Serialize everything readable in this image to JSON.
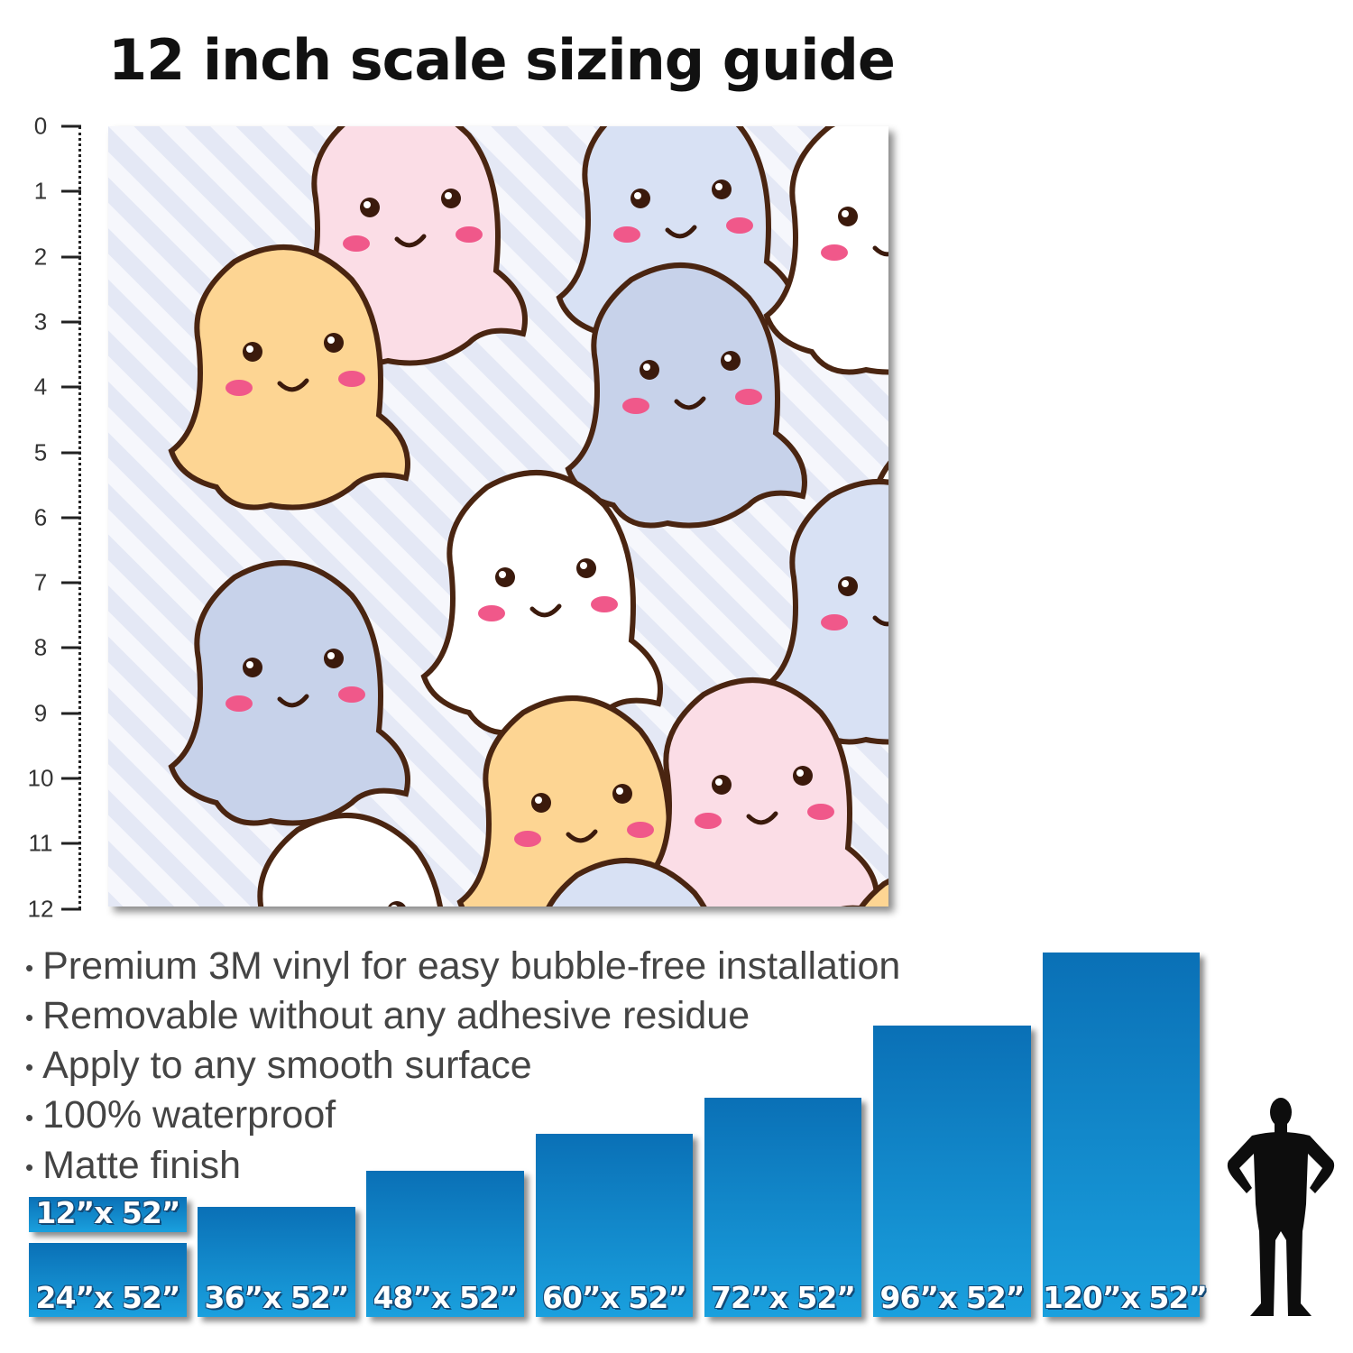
{
  "title": "12 inch scale sizing guide",
  "ruler": {
    "unit_marks": [
      "0",
      "1",
      "2",
      "3",
      "4",
      "5",
      "6",
      "7",
      "8",
      "9",
      "10",
      "11",
      "12"
    ]
  },
  "features": [
    "Premium 3M vinyl for easy bubble-free installation",
    "Removable without any adhesive residue",
    "Apply to any smooth surface",
    "100% waterproof",
    "Matte finish"
  ],
  "sizes": [
    {
      "label": "12”x 52”",
      "width_in": 12
    },
    {
      "label": "24”x 52”",
      "width_in": 24
    },
    {
      "label": "36”x 52”",
      "width_in": 36
    },
    {
      "label": "48”x 52”",
      "width_in": 48
    },
    {
      "label": "60”x 52”",
      "width_in": 60
    },
    {
      "label": "72”x 52”",
      "width_in": 72
    },
    {
      "label": "96”x 52”",
      "width_in": 96
    },
    {
      "label": "120”x 52”",
      "width_in": 120
    }
  ],
  "colors": {
    "bar_top": "#0a70b6",
    "bar_bottom": "#1aa0de",
    "ghost_yellow": "#fdd593",
    "ghost_pink": "#fbdde6",
    "ghost_blue": "#c7d2ea",
    "ghost_lightblue": "#d8e1f4",
    "outline": "#4a2511"
  }
}
